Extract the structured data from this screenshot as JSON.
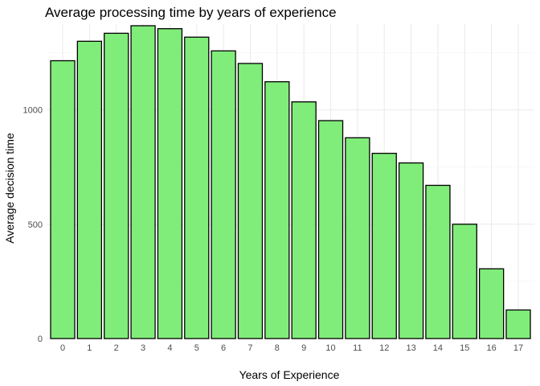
{
  "chart_data": {
    "type": "bar",
    "title": "Average processing time by years of experience",
    "xlabel": "Years of Experience",
    "ylabel": "Average decision time",
    "categories": [
      "0",
      "1",
      "2",
      "3",
      "4",
      "5",
      "6",
      "7",
      "8",
      "9",
      "10",
      "11",
      "12",
      "13",
      "14",
      "15",
      "16",
      "17"
    ],
    "values": [
      1215,
      1300,
      1335,
      1368,
      1355,
      1318,
      1258,
      1203,
      1123,
      1035,
      953,
      878,
      810,
      768,
      670,
      500,
      305,
      125
    ],
    "ylim": [
      0,
      1375
    ],
    "yticks": [
      0,
      500,
      1000
    ],
    "grid": true,
    "bar_color": "#80ed7a",
    "bar_outline": "#000000"
  }
}
